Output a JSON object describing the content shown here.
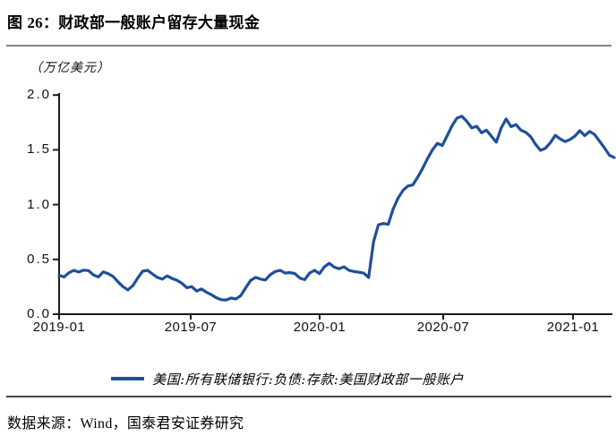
{
  "header": {
    "title_prefix": "图 ",
    "title_number": "26：",
    "title_text": "财政部一般账户留存大量现金"
  },
  "footer": {
    "source_prefix": "数据来源：",
    "source_provider": "Wind",
    "source_suffix": "，国泰君安证券研究"
  },
  "colors": {
    "line": "#1E4F9B",
    "axis": "#1a1a1a",
    "title_rule": "#858585",
    "bottom_rule": "#454545"
  },
  "chart_data": {
    "type": "line",
    "title": "财政部一般账户留存大量现金",
    "unit": "（万亿美元）",
    "ylabel": "万亿美元",
    "ylim": [
      0.0,
      2.0
    ],
    "y_ticks": [
      0.0,
      0.5,
      1.0,
      1.5,
      2.0
    ],
    "x_tick_labels": [
      "2019-01",
      "2019-07",
      "2020-01",
      "2020-07",
      "2021-01"
    ],
    "x_start": "2019-01",
    "x_end": "2021-02",
    "frequency": "weekly",
    "grid": false,
    "legend_position": "bottom",
    "series": [
      {
        "name": "美国:所有联储银行:负债:存款:美国财政部一般账户",
        "color": "#1E4F9B",
        "values": [
          0.355,
          0.34,
          0.378,
          0.4,
          0.385,
          0.402,
          0.398,
          0.358,
          0.34,
          0.386,
          0.37,
          0.344,
          0.296,
          0.252,
          0.222,
          0.26,
          0.33,
          0.392,
          0.4,
          0.368,
          0.336,
          0.32,
          0.35,
          0.326,
          0.31,
          0.282,
          0.242,
          0.252,
          0.212,
          0.23,
          0.2,
          0.178,
          0.15,
          0.132,
          0.13,
          0.147,
          0.14,
          0.17,
          0.242,
          0.31,
          0.336,
          0.32,
          0.312,
          0.36,
          0.39,
          0.4,
          0.376,
          0.38,
          0.37,
          0.33,
          0.315,
          0.376,
          0.4,
          0.37,
          0.432,
          0.465,
          0.43,
          0.415,
          0.432,
          0.4,
          0.39,
          0.383,
          0.375,
          0.335,
          0.66,
          0.815,
          0.828,
          0.82,
          0.96,
          1.06,
          1.13,
          1.17,
          1.18,
          1.25,
          1.33,
          1.42,
          1.5,
          1.56,
          1.54,
          1.63,
          1.72,
          1.79,
          1.806,
          1.76,
          1.7,
          1.715,
          1.655,
          1.68,
          1.625,
          1.57,
          1.7,
          1.782,
          1.712,
          1.73,
          1.68,
          1.66,
          1.62,
          1.55,
          1.495,
          1.515,
          1.565,
          1.632,
          1.6,
          1.575,
          1.595,
          1.625,
          1.675,
          1.63,
          1.668,
          1.64,
          1.58,
          1.52,
          1.452,
          1.43
        ]
      }
    ]
  }
}
